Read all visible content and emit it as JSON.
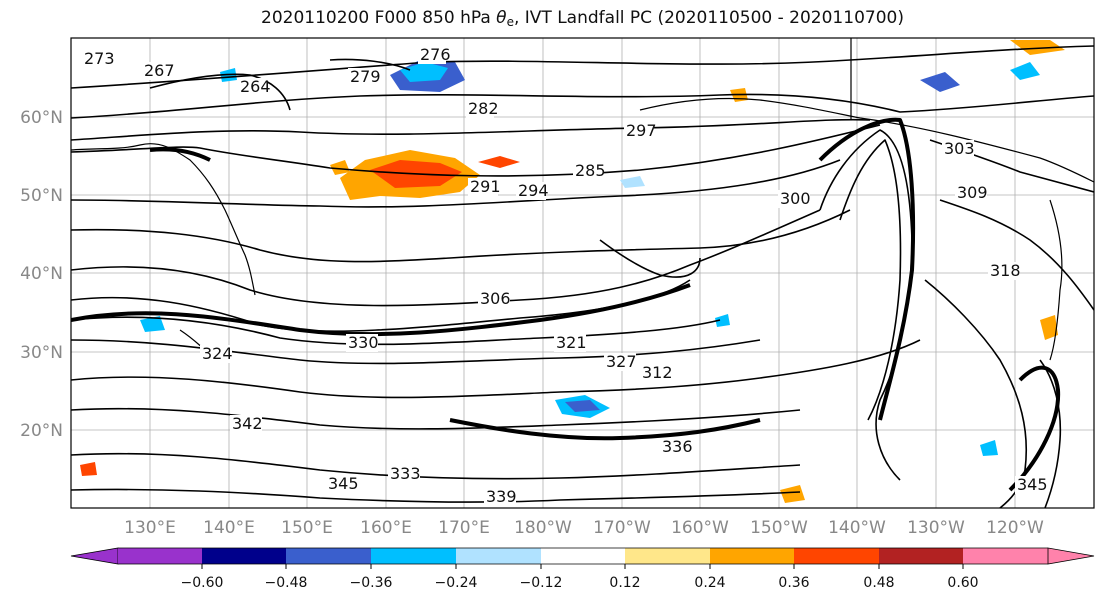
{
  "title": {
    "prefix": "2020110200 F000 850 hPa ",
    "symbol": "θ",
    "subscript": "e",
    "suffix": ", IVT Landfall PC (2020110500 - 2020110700)"
  },
  "map": {
    "lat_labels": [
      "60°N",
      "50°N",
      "40°N",
      "30°N",
      "20°N"
    ],
    "lon_labels": [
      "130°E",
      "140°E",
      "150°E",
      "160°E",
      "170°E",
      "180°W",
      "170°W",
      "160°W",
      "150°W",
      "140°W",
      "130°W",
      "120°W"
    ],
    "contour_labels": [
      "273",
      "267",
      "264",
      "276",
      "279",
      "282",
      "285",
      "291",
      "294",
      "297",
      "303",
      "309",
      "300",
      "306",
      "312",
      "318",
      "321",
      "324",
      "327",
      "330",
      "333",
      "336",
      "339",
      "342",
      "345"
    ],
    "contour_color": "#000000",
    "coastline_color": "#000000",
    "gridline_color": "#b0b0b0"
  },
  "colorbar": {
    "colors": [
      "#9932cc",
      "#00008b",
      "#3a5fcd",
      "#00bfff",
      "#b0e2ff",
      "#ffffff",
      "#ffe78a",
      "#ffa500",
      "#ff4500",
      "#b22222",
      "#ff82ab"
    ],
    "tick_labels": [
      "−0.60",
      "−0.48",
      "−0.36",
      "−0.24",
      "−0.12",
      "0.12",
      "0.24",
      "0.36",
      "0.48",
      "0.60"
    ],
    "extend": "both"
  }
}
